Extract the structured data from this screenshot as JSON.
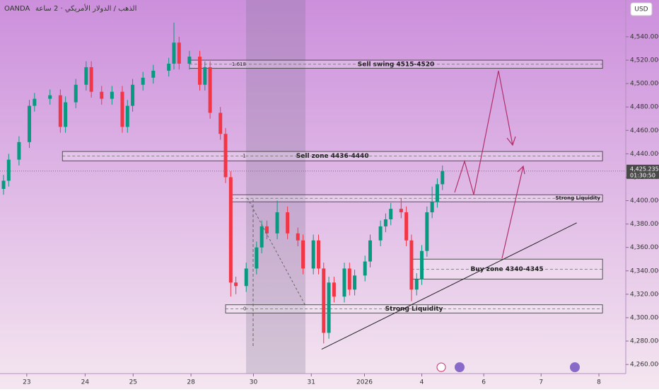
{
  "chart_data": {
    "type": "candlestick",
    "title": "OANDA",
    "subtitle": "الذهب / الدولار الأمريكي · 2 ساعة",
    "currency": "USD",
    "up_color": "#089981",
    "down_color": "#f23645",
    "x": [
      0,
      1,
      3,
      5,
      6,
      9,
      11,
      12,
      14,
      16,
      17,
      19,
      21,
      23,
      24,
      25,
      27,
      29,
      32,
      33,
      34,
      36,
      38,
      39,
      40,
      42,
      43,
      44,
      45,
      47,
      49,
      50,
      51,
      53,
      55,
      57,
      58,
      60,
      61,
      62,
      63,
      64,
      66,
      67,
      68,
      70,
      71,
      73,
      74,
      75,
      77,
      78,
      79,
      80,
      81,
      82,
      83,
      84,
      85
    ],
    "open": [
      4410,
      4417,
      4435,
      4450,
      4481,
      4487,
      4490,
      4463,
      4484,
      4499,
      4514,
      4493,
      4487,
      4493,
      4463,
      4481,
      4499,
      4505,
      4511,
      4517,
      4535,
      4517,
      4523,
      4499,
      4514,
      4475,
      4457,
      4420,
      4330,
      4327,
      4342,
      4360,
      4378,
      4372,
      4390,
      4372,
      4366,
      4342,
      4366,
      4342,
      4287,
      4330,
      4318,
      4342,
      4324,
      4336,
      4348,
      4366,
      4378,
      4384,
      4393,
      4390,
      4366,
      4324,
      4333,
      4357,
      4390,
      4399,
      4414
    ],
    "high": [
      4422,
      4440,
      4455,
      4486,
      4492,
      4495,
      4495,
      4489,
      4504,
      4519,
      4519,
      4498,
      4498,
      4498,
      4486,
      4504,
      4510,
      4516,
      4522,
      4552,
      4540,
      4528,
      4528,
      4519,
      4519,
      4480,
      4462,
      4425,
      4335,
      4347,
      4365,
      4383,
      4383,
      4400,
      4395,
      4377,
      4371,
      4371,
      4371,
      4347,
      4335,
      4335,
      4347,
      4347,
      4341,
      4353,
      4371,
      4383,
      4389,
      4398,
      4402,
      4395,
      4371,
      4338,
      4362,
      4395,
      4412,
      4419,
      4430
    ],
    "low": [
      4405,
      4412,
      4430,
      4445,
      4476,
      4482,
      4458,
      4458,
      4479,
      4494,
      4488,
      4482,
      4482,
      4458,
      4458,
      4476,
      4494,
      4500,
      4506,
      4512,
      4512,
      4512,
      4494,
      4494,
      4470,
      4452,
      4415,
      4318,
      4320,
      4322,
      4337,
      4355,
      4367,
      4367,
      4367,
      4361,
      4337,
      4337,
      4337,
      4278,
      4282,
      4313,
      4313,
      4319,
      4319,
      4331,
      4343,
      4361,
      4373,
      4379,
      4385,
      4361,
      4314,
      4319,
      4328,
      4352,
      4385,
      4394,
      4409
    ],
    "close": [
      4417,
      4435,
      4450,
      4481,
      4487,
      4490,
      4463,
      4484,
      4499,
      4514,
      4493,
      4487,
      4493,
      4463,
      4481,
      4499,
      4505,
      4511,
      4517,
      4535,
      4517,
      4523,
      4499,
      4514,
      4475,
      4457,
      4420,
      4330,
      4327,
      4342,
      4360,
      4378,
      4372,
      4390,
      4372,
      4366,
      4342,
      4366,
      4342,
      4287,
      4330,
      4318,
      4342,
      4324,
      4336,
      4348,
      4366,
      4378,
      4384,
      4393,
      4390,
      4366,
      4324,
      4333,
      4357,
      4390,
      4399,
      4414,
      4425.235
    ],
    "xlim": [
      -0.685,
      120.5
    ],
    "ylim": [
      4252.2,
      4571.4
    ],
    "yticks": [
      {
        "value": 4260,
        "label": "4,260.000"
      },
      {
        "value": 4280,
        "label": "4,280.000"
      },
      {
        "value": 4300,
        "label": "4,300.000"
      },
      {
        "value": 4320,
        "label": "4,320.000"
      },
      {
        "value": 4340,
        "label": "4,340.000"
      },
      {
        "value": 4360,
        "label": "4,360.000"
      },
      {
        "value": 4380,
        "label": "4,380.000"
      },
      {
        "value": 4400,
        "label": "4,400.000"
      },
      {
        "value": 4420,
        "label": "4,420.000"
      },
      {
        "value": 4440,
        "label": "4,440.000"
      },
      {
        "value": 4460,
        "label": "4,460.000"
      },
      {
        "value": 4480,
        "label": "4,480.000"
      },
      {
        "value": 4500,
        "label": "4,500.000"
      },
      {
        "value": 4520,
        "label": "4,520.000"
      },
      {
        "value": 4540,
        "label": "4,540.000"
      }
    ],
    "xticks": [
      {
        "value": 4.5,
        "label": "23"
      },
      {
        "value": 15.8,
        "label": "24"
      },
      {
        "value": 25.1,
        "label": "25"
      },
      {
        "value": 36.3,
        "label": "28"
      },
      {
        "value": 48.4,
        "label": "30"
      },
      {
        "value": 59.6,
        "label": "31"
      },
      {
        "value": 69.9,
        "label": "2026"
      },
      {
        "value": 81,
        "label": "4"
      },
      {
        "value": 93,
        "label": "6"
      },
      {
        "value": 104.1,
        "label": "7"
      },
      {
        "value": 115.3,
        "label": "8"
      }
    ],
    "zones": [
      {
        "label": "Sell swing 4515-4520",
        "level_label": "1.618",
        "low": 4513,
        "high": 4520,
        "x_start": 36,
        "x_end": 116,
        "label_position": "center"
      },
      {
        "label": "Sell zone 4436-4440",
        "level_label": "1",
        "low": 4434,
        "high": 4442,
        "x_start": 11.4,
        "x_end": 116,
        "label_position": "center"
      },
      {
        "label": "Strong Liquidity",
        "low": 4399,
        "high": 4405,
        "x_start": 44,
        "x_end": 116,
        "label_position": "right"
      },
      {
        "label": "Buy zone 4340-4345",
        "low": 4333,
        "high": 4350,
        "x_start": 79,
        "x_end": 116,
        "label_position": "center"
      },
      {
        "label": "Strong Liquidity",
        "level_label": "0",
        "low": 4304,
        "high": 4311,
        "x_start": 43,
        "x_end": 116,
        "label_position": "center"
      }
    ],
    "trendline": {
      "x": [
        61.6,
        111
      ],
      "y": [
        4273,
        4381
      ]
    },
    "last_price": {
      "value": 4425.235,
      "label": "4,425.235"
    },
    "countdown": "01:30:50"
  }
}
